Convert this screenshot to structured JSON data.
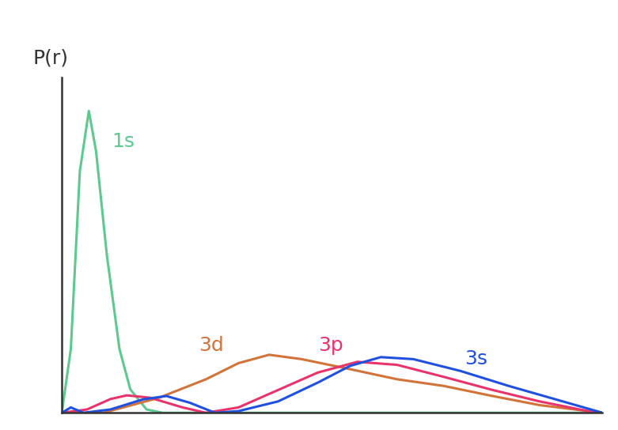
{
  "chart_data": {
    "type": "line",
    "y_label": "P(r)",
    "xlim": [
      0,
      30
    ],
    "ylim": [
      0,
      1
    ],
    "xticks": [],
    "yticks": [],
    "tick_labels": false,
    "grid": false,
    "data_labels": false,
    "series": [
      {
        "name": "1s",
        "color": "#5cc98f",
        "x": [
          0,
          0.5,
          1.0,
          1.5,
          1.9,
          2.5,
          3.2,
          3.8,
          4.7,
          5.6,
          30
        ],
        "values": [
          0,
          0.19,
          0.72,
          0.9,
          0.78,
          0.47,
          0.19,
          0.07,
          0.01,
          0,
          0
        ]
      },
      {
        "name": "3d",
        "color": "#d2733a",
        "x": [
          0,
          2.3,
          5.4,
          8.0,
          9.8,
          11.5,
          13.3,
          16.0,
          18.6,
          21.2,
          23.9,
          26.5,
          29.2,
          30
        ],
        "values": [
          0,
          0,
          0.045,
          0.1,
          0.148,
          0.173,
          0.16,
          0.13,
          0.1,
          0.08,
          0.05,
          0.023,
          0.005,
          0
        ]
      },
      {
        "name": "3p",
        "color": "#e8336b",
        "x": [
          0,
          1.4,
          2.7,
          3.6,
          4.9,
          6.7,
          8.0,
          9.8,
          12.0,
          14.2,
          16.4,
          18.6,
          21.2,
          23.9,
          26.5,
          29.2,
          30
        ],
        "values": [
          0,
          0.01,
          0.041,
          0.052,
          0.045,
          0.016,
          0,
          0.016,
          0.068,
          0.12,
          0.152,
          0.143,
          0.107,
          0.068,
          0.034,
          0.005,
          0
        ]
      },
      {
        "name": "3s",
        "color": "#2050e0",
        "x": [
          0,
          0.5,
          1.2,
          2.7,
          4.5,
          5.8,
          7.1,
          8.5,
          9.8,
          12.0,
          14.2,
          16.0,
          17.7,
          19.5,
          22.1,
          24.8,
          27.4,
          30
        ],
        "values": [
          0,
          0.016,
          0,
          0.01,
          0.04,
          0.05,
          0.03,
          0,
          0.005,
          0.034,
          0.09,
          0.14,
          0.166,
          0.16,
          0.125,
          0.08,
          0.04,
          0
        ]
      }
    ]
  }
}
